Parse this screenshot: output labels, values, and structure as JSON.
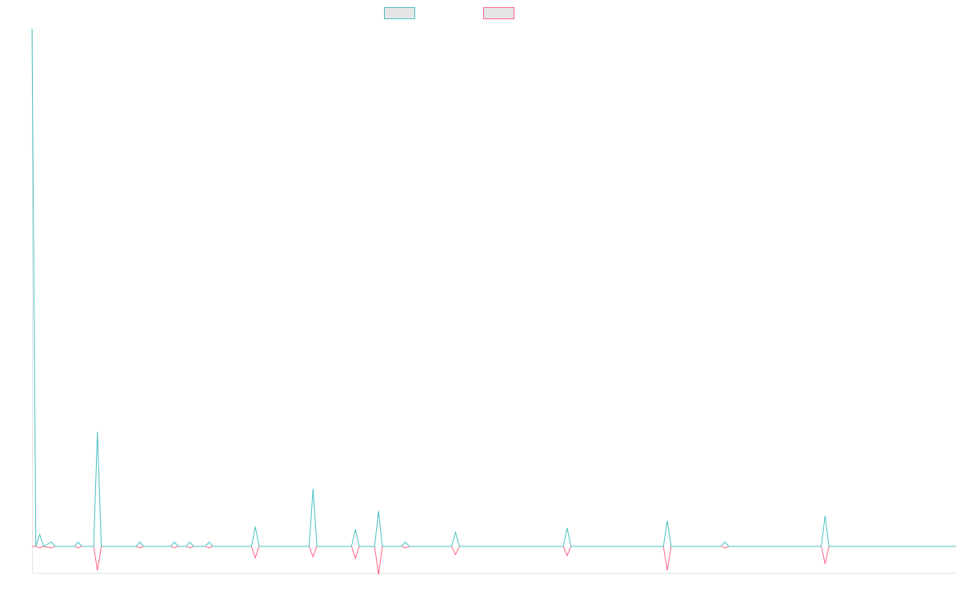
{
  "chart_data": {
    "type": "line",
    "title": "",
    "xlabel": "",
    "ylabel": "",
    "grid": false,
    "legend_position": "top-center",
    "x": [
      0,
      1,
      2,
      3,
      4,
      5,
      6,
      7,
      8,
      9,
      10,
      11,
      12,
      13,
      14,
      15,
      16,
      17,
      18,
      19,
      20,
      21,
      22,
      23,
      24,
      25,
      26,
      27,
      28,
      29,
      30,
      31,
      32,
      33,
      34,
      35,
      36,
      37,
      38,
      39,
      40,
      41,
      42,
      43,
      44,
      45,
      46,
      47,
      48,
      49,
      50,
      51,
      52,
      53,
      54,
      55,
      56,
      57,
      58,
      59,
      60,
      61,
      62,
      63,
      64,
      65,
      66,
      67,
      68,
      69,
      70,
      71,
      72,
      73,
      74,
      75,
      76,
      77,
      78,
      79,
      80,
      81,
      82,
      83,
      84,
      85,
      86,
      87,
      88,
      89,
      90,
      91,
      92,
      93,
      94,
      95,
      96,
      97,
      98,
      99,
      100,
      101,
      102,
      103,
      104,
      105,
      106,
      107,
      108,
      109,
      110,
      111,
      112,
      113,
      114,
      115,
      116,
      117,
      118,
      119,
      120,
      121,
      122,
      123,
      124,
      125,
      126,
      127,
      128,
      129,
      130,
      131,
      132,
      133,
      134,
      135,
      136,
      137,
      138,
      139,
      140,
      141,
      142,
      143,
      144,
      145,
      146,
      147,
      148,
      149,
      150,
      151,
      152,
      153,
      154,
      155,
      156,
      157,
      158,
      159,
      160,
      161,
      162,
      163,
      164,
      165,
      166,
      167,
      168,
      169,
      170,
      171,
      172,
      173,
      174,
      175,
      176,
      177,
      178,
      179,
      180,
      181,
      182,
      183,
      184,
      185,
      186,
      187,
      188,
      189,
      190,
      191,
      192,
      193,
      194,
      195,
      196,
      197,
      198,
      199,
      200,
      201,
      202,
      203,
      204,
      205,
      206,
      207,
      208,
      209,
      210,
      211,
      212,
      213,
      214,
      215,
      216,
      217,
      218,
      219,
      220,
      221,
      222,
      223,
      224,
      225,
      226,
      227,
      228,
      229,
      230,
      231,
      232,
      233,
      234,
      235,
      236,
      237,
      238,
      239,
      240
    ],
    "ylim": [
      -5,
      95
    ],
    "series": [
      {
        "color": "#4bc0c0",
        "points": [
          [
            0,
            95
          ],
          [
            1,
            0
          ],
          [
            2,
            2.2
          ],
          [
            3,
            0
          ],
          [
            5,
            0.8
          ],
          [
            6,
            0
          ],
          [
            11,
            0
          ],
          [
            12,
            0.8
          ],
          [
            13,
            0
          ],
          [
            16,
            0
          ],
          [
            17,
            21
          ],
          [
            18,
            0
          ],
          [
            27,
            0
          ],
          [
            28,
            0.8
          ],
          [
            29,
            0
          ],
          [
            36,
            0
          ],
          [
            37,
            0.8
          ],
          [
            38,
            0
          ],
          [
            40,
            0
          ],
          [
            41,
            0.8
          ],
          [
            42,
            0
          ],
          [
            45,
            0
          ],
          [
            46,
            0.8
          ],
          [
            47,
            0
          ],
          [
            57,
            0
          ],
          [
            58,
            3.6
          ],
          [
            59,
            0
          ],
          [
            72,
            0
          ],
          [
            73,
            10.6
          ],
          [
            74,
            0
          ],
          [
            83,
            0
          ],
          [
            84,
            3.1
          ],
          [
            85,
            0
          ],
          [
            89,
            0
          ],
          [
            90,
            6.5
          ],
          [
            91,
            0
          ],
          [
            96,
            0
          ],
          [
            97,
            0.8
          ],
          [
            98,
            0
          ],
          [
            109,
            0
          ],
          [
            110,
            2.6
          ],
          [
            111,
            0
          ],
          [
            138,
            0
          ],
          [
            139,
            3.4
          ],
          [
            140,
            0
          ],
          [
            164,
            0
          ],
          [
            165,
            4.7
          ],
          [
            166,
            0
          ],
          [
            179,
            0
          ],
          [
            180,
            0.8
          ],
          [
            181,
            0
          ],
          [
            205,
            0
          ],
          [
            206,
            5.6
          ],
          [
            207,
            0
          ],
          [
            240,
            0
          ]
        ]
      },
      {
        "color": "#ff6384",
        "points": [
          [
            0,
            0
          ],
          [
            1,
            0
          ],
          [
            2,
            -0.3
          ],
          [
            3,
            0
          ],
          [
            5,
            -0.3
          ],
          [
            6,
            0
          ],
          [
            11,
            0
          ],
          [
            12,
            -0.3
          ],
          [
            13,
            0
          ],
          [
            16,
            0
          ],
          [
            17,
            -4.4
          ],
          [
            18,
            0
          ],
          [
            27,
            0
          ],
          [
            28,
            -0.3
          ],
          [
            29,
            0
          ],
          [
            36,
            0
          ],
          [
            37,
            -0.3
          ],
          [
            38,
            0
          ],
          [
            40,
            0
          ],
          [
            41,
            -0.3
          ],
          [
            42,
            0
          ],
          [
            45,
            0
          ],
          [
            46,
            -0.3
          ],
          [
            47,
            0
          ],
          [
            57,
            0
          ],
          [
            58,
            -2.1
          ],
          [
            59,
            0
          ],
          [
            72,
            0
          ],
          [
            73,
            -1.9
          ],
          [
            74,
            0
          ],
          [
            83,
            0
          ],
          [
            84,
            -2.2
          ],
          [
            85,
            0
          ],
          [
            89,
            0
          ],
          [
            90,
            -5.2
          ],
          [
            91,
            0
          ],
          [
            96,
            0
          ],
          [
            97,
            -0.3
          ],
          [
            98,
            0
          ],
          [
            109,
            0
          ],
          [
            110,
            -1.5
          ],
          [
            111,
            0
          ],
          [
            138,
            0
          ],
          [
            139,
            -1.7
          ],
          [
            140,
            0
          ],
          [
            164,
            0
          ],
          [
            165,
            -4.4
          ],
          [
            166,
            0
          ],
          [
            179,
            0
          ],
          [
            180,
            -0.3
          ],
          [
            181,
            0
          ],
          [
            205,
            0
          ],
          [
            206,
            -3.2
          ],
          [
            207,
            0
          ],
          [
            240,
            0
          ]
        ]
      }
    ]
  }
}
